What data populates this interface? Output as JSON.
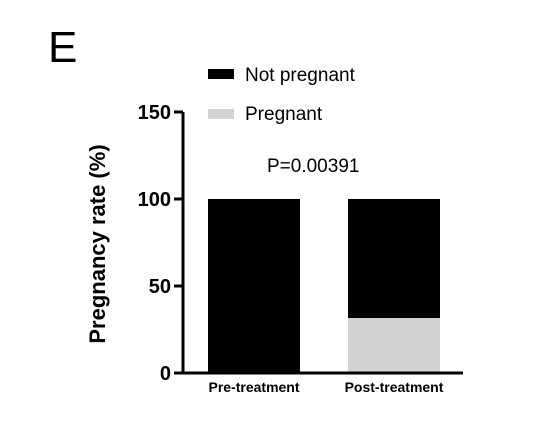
{
  "panel_label": "E",
  "chart_data": {
    "type": "bar",
    "stacked": true,
    "categories": [
      "Pre-treatment",
      "Post-treatment"
    ],
    "series": [
      {
        "name": "Pregnant",
        "values": [
          0,
          31.6
        ],
        "color": "#d3d3d3"
      },
      {
        "name": "Not pregnant",
        "values": [
          100,
          68.4
        ],
        "color": "#000000"
      }
    ],
    "legend": [
      {
        "name": "Not pregnant",
        "color": "#000000"
      },
      {
        "name": "Pregnant",
        "color": "#d3d3d3"
      }
    ],
    "legend_position": "top",
    "annotation": "P=0.00391",
    "ylabel": "Pregnancy rate (%)",
    "xlabel": "",
    "ylim": [
      0,
      150
    ],
    "yticks": [
      0,
      50,
      100,
      150
    ],
    "grid": false
  }
}
